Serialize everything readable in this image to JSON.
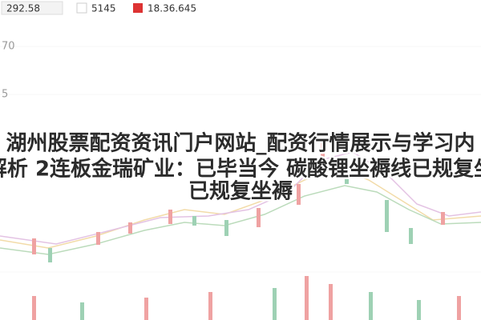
{
  "header": {
    "values": [
      "292.58",
      "5145",
      "18.36.645"
    ]
  },
  "axis": {
    "labels": [
      "70",
      "5"
    ]
  },
  "title": {
    "lines": [
      "湖州股票配资资讯门户网站_配资行情展示与学习内",
      "解析 2连板金瑞矿业：已毕当今 碳酸锂坐褥线已规复坐",
      "已规复坐褥"
    ]
  }
}
